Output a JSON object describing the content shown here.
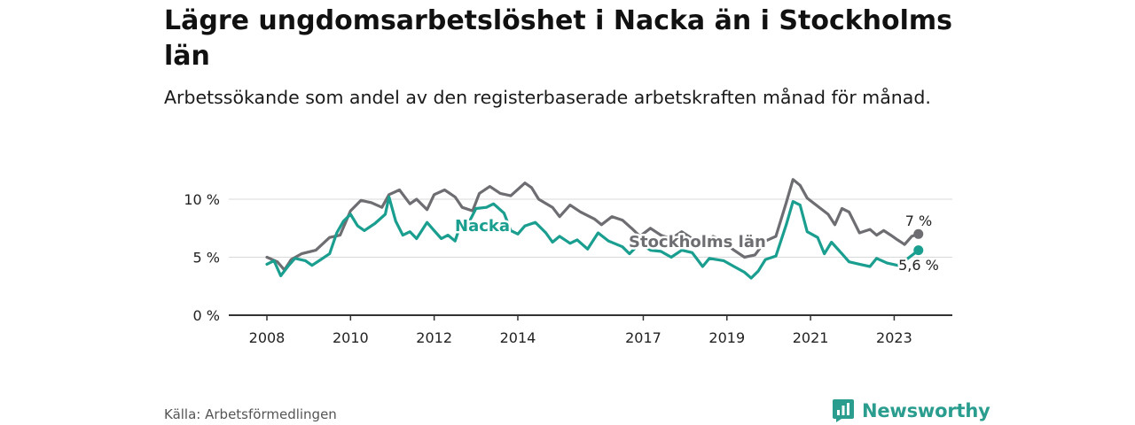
{
  "header": {
    "title": "Lägre ungdomsarbetslöshet i Nacka än i Stockholms län",
    "subtitle": "Arbetssökande som andel av den registerbaserade arbetskraften månad för månad."
  },
  "footer": {
    "source": "Källa: Arbetsförmedlingen",
    "brand": "Newsworthy"
  },
  "colors": {
    "nacka": "#1a9e8f",
    "stockholm": "#6e6d72",
    "grid": "#d9d9d9",
    "axis": "#333333"
  },
  "chart_data": {
    "type": "line",
    "title": "Lägre ungdomsarbetslöshet i Nacka än i Stockholms län",
    "xlabel": "",
    "ylabel": "",
    "x_range": [
      2007.92,
      2023.75
    ],
    "ylim": [
      0,
      10
    ],
    "y_ticks": [
      0,
      5,
      10
    ],
    "y_tick_labels": [
      "0 %",
      "5 %",
      "10 %"
    ],
    "x_ticks": [
      2008,
      2010,
      2012,
      2014,
      2017,
      2019,
      2021,
      2023
    ],
    "x_tick_labels": [
      "2008",
      "2010",
      "2012",
      "2014",
      "2017",
      "2019",
      "2021",
      "2023"
    ],
    "grid": true,
    "series": [
      {
        "name": "Stockholms län",
        "label": "Stockholms län",
        "end_label": "7 %",
        "end_value": 7,
        "points": [
          [
            2008.0,
            5.0
          ],
          [
            2008.25,
            4.6
          ],
          [
            2008.42,
            3.9
          ],
          [
            2008.58,
            4.8
          ],
          [
            2008.83,
            5.3
          ],
          [
            2009.17,
            5.6
          ],
          [
            2009.5,
            6.7
          ],
          [
            2009.75,
            6.9
          ],
          [
            2010.0,
            9.0
          ],
          [
            2010.25,
            9.9
          ],
          [
            2010.5,
            9.7
          ],
          [
            2010.75,
            9.3
          ],
          [
            2010.92,
            10.4
          ],
          [
            2011.17,
            10.8
          ],
          [
            2011.42,
            9.6
          ],
          [
            2011.58,
            10.0
          ],
          [
            2011.83,
            9.1
          ],
          [
            2012.0,
            10.4
          ],
          [
            2012.25,
            10.8
          ],
          [
            2012.5,
            10.2
          ],
          [
            2012.67,
            9.3
          ],
          [
            2012.92,
            9.0
          ],
          [
            2013.08,
            10.5
          ],
          [
            2013.33,
            11.1
          ],
          [
            2013.58,
            10.5
          ],
          [
            2013.83,
            10.3
          ],
          [
            2014.17,
            11.4
          ],
          [
            2014.33,
            11.0
          ],
          [
            2014.5,
            10.0
          ],
          [
            2014.83,
            9.3
          ],
          [
            2015.0,
            8.5
          ],
          [
            2015.25,
            9.5
          ],
          [
            2015.5,
            8.9
          ],
          [
            2015.83,
            8.3
          ],
          [
            2016.0,
            7.8
          ],
          [
            2016.25,
            8.5
          ],
          [
            2016.5,
            8.2
          ],
          [
            2016.75,
            7.4
          ],
          [
            2016.92,
            6.8
          ],
          [
            2017.17,
            7.5
          ],
          [
            2017.42,
            6.9
          ],
          [
            2017.67,
            6.6
          ],
          [
            2017.92,
            7.2
          ],
          [
            2018.17,
            6.6
          ],
          [
            2018.42,
            6.0
          ],
          [
            2018.67,
            6.8
          ],
          [
            2018.92,
            6.3
          ],
          [
            2019.17,
            5.6
          ],
          [
            2019.42,
            5.0
          ],
          [
            2019.67,
            5.2
          ],
          [
            2019.92,
            6.4
          ],
          [
            2020.17,
            6.8
          ],
          [
            2020.42,
            9.7
          ],
          [
            2020.58,
            11.7
          ],
          [
            2020.75,
            11.2
          ],
          [
            2020.92,
            10.1
          ],
          [
            2021.17,
            9.4
          ],
          [
            2021.42,
            8.7
          ],
          [
            2021.58,
            7.8
          ],
          [
            2021.75,
            9.2
          ],
          [
            2021.92,
            8.9
          ],
          [
            2022.17,
            7.1
          ],
          [
            2022.42,
            7.4
          ],
          [
            2022.58,
            6.9
          ],
          [
            2022.75,
            7.3
          ],
          [
            2022.92,
            6.9
          ],
          [
            2023.08,
            6.5
          ],
          [
            2023.25,
            6.1
          ],
          [
            2023.42,
            6.8
          ],
          [
            2023.58,
            7.0
          ]
        ]
      },
      {
        "name": "Nacka",
        "label": "Nacka",
        "end_label": "5,6 %",
        "end_value": 5.6,
        "points": [
          [
            2008.0,
            4.4
          ],
          [
            2008.17,
            4.7
          ],
          [
            2008.33,
            3.4
          ],
          [
            2008.5,
            4.2
          ],
          [
            2008.67,
            4.9
          ],
          [
            2008.92,
            4.7
          ],
          [
            2009.08,
            4.3
          ],
          [
            2009.25,
            4.7
          ],
          [
            2009.5,
            5.3
          ],
          [
            2009.67,
            7.1
          ],
          [
            2009.83,
            8.1
          ],
          [
            2010.0,
            8.7
          ],
          [
            2010.17,
            7.7
          ],
          [
            2010.33,
            7.3
          ],
          [
            2010.58,
            7.9
          ],
          [
            2010.83,
            8.7
          ],
          [
            2010.92,
            10.2
          ],
          [
            2011.08,
            8.1
          ],
          [
            2011.25,
            6.9
          ],
          [
            2011.42,
            7.2
          ],
          [
            2011.58,
            6.6
          ],
          [
            2011.83,
            8.0
          ],
          [
            2012.0,
            7.3
          ],
          [
            2012.17,
            6.6
          ],
          [
            2012.33,
            6.9
          ],
          [
            2012.5,
            6.4
          ],
          [
            2012.67,
            8.2
          ],
          [
            2012.83,
            8.0
          ],
          [
            2013.0,
            9.2
          ],
          [
            2013.25,
            9.3
          ],
          [
            2013.42,
            9.6
          ],
          [
            2013.67,
            8.8
          ],
          [
            2013.83,
            7.3
          ],
          [
            2014.0,
            7.0
          ],
          [
            2014.17,
            7.7
          ],
          [
            2014.42,
            8.0
          ],
          [
            2014.67,
            7.1
          ],
          [
            2014.83,
            6.3
          ],
          [
            2015.0,
            6.8
          ],
          [
            2015.25,
            6.2
          ],
          [
            2015.42,
            6.5
          ],
          [
            2015.67,
            5.7
          ],
          [
            2015.92,
            7.1
          ],
          [
            2016.17,
            6.4
          ],
          [
            2016.5,
            5.9
          ],
          [
            2016.67,
            5.3
          ],
          [
            2016.92,
            6.2
          ],
          [
            2017.17,
            5.6
          ],
          [
            2017.42,
            5.5
          ],
          [
            2017.67,
            5.0
          ],
          [
            2017.92,
            5.6
          ],
          [
            2018.17,
            5.4
          ],
          [
            2018.42,
            4.2
          ],
          [
            2018.58,
            4.9
          ],
          [
            2018.92,
            4.7
          ],
          [
            2019.17,
            4.2
          ],
          [
            2019.42,
            3.7
          ],
          [
            2019.58,
            3.2
          ],
          [
            2019.75,
            3.8
          ],
          [
            2019.92,
            4.8
          ],
          [
            2020.17,
            5.1
          ],
          [
            2020.42,
            7.8
          ],
          [
            2020.58,
            9.8
          ],
          [
            2020.75,
            9.5
          ],
          [
            2020.92,
            7.2
          ],
          [
            2021.17,
            6.7
          ],
          [
            2021.33,
            5.3
          ],
          [
            2021.5,
            6.3
          ],
          [
            2021.75,
            5.3
          ],
          [
            2021.92,
            4.6
          ],
          [
            2022.17,
            4.4
          ],
          [
            2022.42,
            4.2
          ],
          [
            2022.58,
            4.9
          ],
          [
            2022.83,
            4.5
          ],
          [
            2023.08,
            4.3
          ],
          [
            2023.33,
            4.9
          ],
          [
            2023.58,
            5.6
          ]
        ]
      }
    ]
  }
}
